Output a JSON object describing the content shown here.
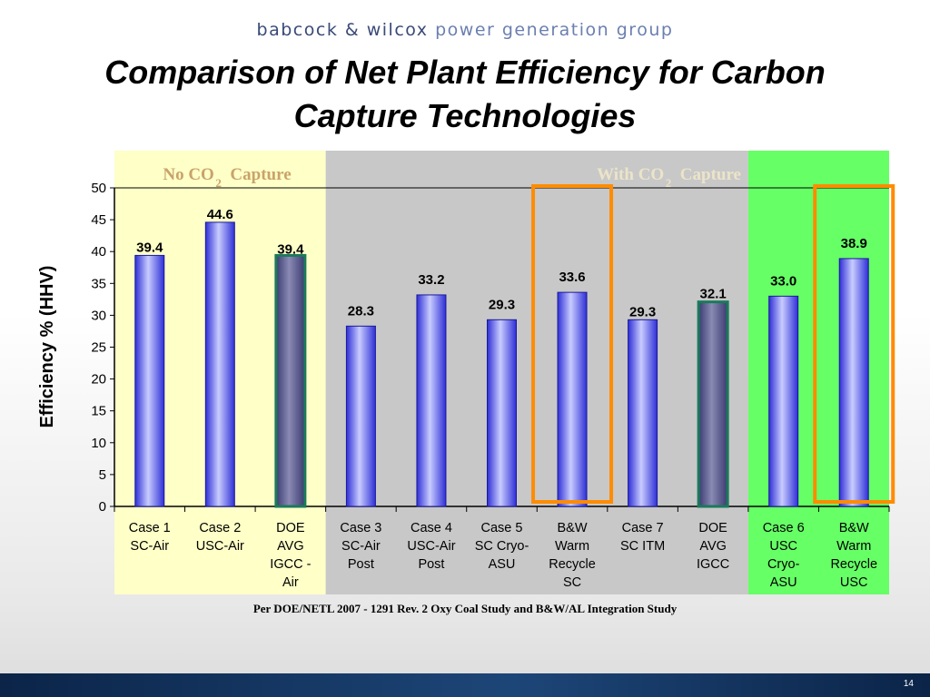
{
  "header": {
    "brand_main": "babcock & wilcox",
    "brand_sub": "power generation group",
    "title_line1": "Comparison of Net Plant Efficiency for Carbon",
    "title_line2": "Capture Technologies"
  },
  "regions": {
    "no_capture": {
      "label": "No CO",
      "sub": "2",
      "suffix": "Capture",
      "color": "#ffffc8",
      "text_color": "#c9a36a"
    },
    "with_capture": {
      "label": "With CO",
      "sub": "2",
      "suffix": "Capture",
      "color": "#c8c8c8",
      "text_color": "#ece4c8"
    },
    "green": {
      "color": "#66ff66"
    }
  },
  "chart_data": {
    "type": "bar",
    "title": "",
    "xlabel": "",
    "ylabel": "Efficiency % (HHV)",
    "ylim": [
      0,
      50
    ],
    "yticks": [
      0,
      5,
      10,
      15,
      20,
      25,
      30,
      35,
      40,
      45,
      50
    ],
    "categories": [
      [
        "Case 1",
        "SC-Air"
      ],
      [
        "Case 2",
        "USC-Air"
      ],
      [
        "DOE",
        "AVG",
        "IGCC -",
        "Air"
      ],
      [
        "Case 3",
        "SC-Air",
        "Post"
      ],
      [
        "Case 4",
        "USC-Air",
        "Post"
      ],
      [
        "Case 5",
        "SC Cryo-",
        "ASU"
      ],
      [
        "B&W",
        "Warm",
        "Recycle",
        "SC"
      ],
      [
        "Case 7",
        "SC ITM"
      ],
      [
        "DOE",
        "AVG",
        "IGCC"
      ],
      [
        "Case 6",
        "USC",
        "Cryo-",
        "ASU"
      ],
      [
        "B&W",
        "Warm",
        "Recycle",
        "USC"
      ]
    ],
    "values": [
      39.4,
      44.6,
      39.4,
      28.3,
      33.2,
      29.3,
      33.6,
      29.3,
      32.1,
      33.0,
      38.9
    ],
    "value_labels": [
      "39.4",
      "44.6",
      "39.4",
      "28.3",
      "33.2",
      "29.3",
      "33.6",
      "29.3",
      "32.1",
      "33.0",
      "38.9"
    ],
    "bar_styles": [
      "blue",
      "blue",
      "gray",
      "blue",
      "blue",
      "blue",
      "blue",
      "blue",
      "gray",
      "blue",
      "blue"
    ],
    "highlighted": [
      6,
      10
    ],
    "colors": {
      "bar_blue": "#4444ee",
      "bar_gray": "#5a5a8c",
      "highlight": "#ff8c00",
      "gray_outline": "#1a7a5a"
    }
  },
  "footnote": "Per DOE/NETL 2007 - 1291 Rev. 2 Oxy Coal Study and B&W/AL Integration Study",
  "page_number": "14"
}
